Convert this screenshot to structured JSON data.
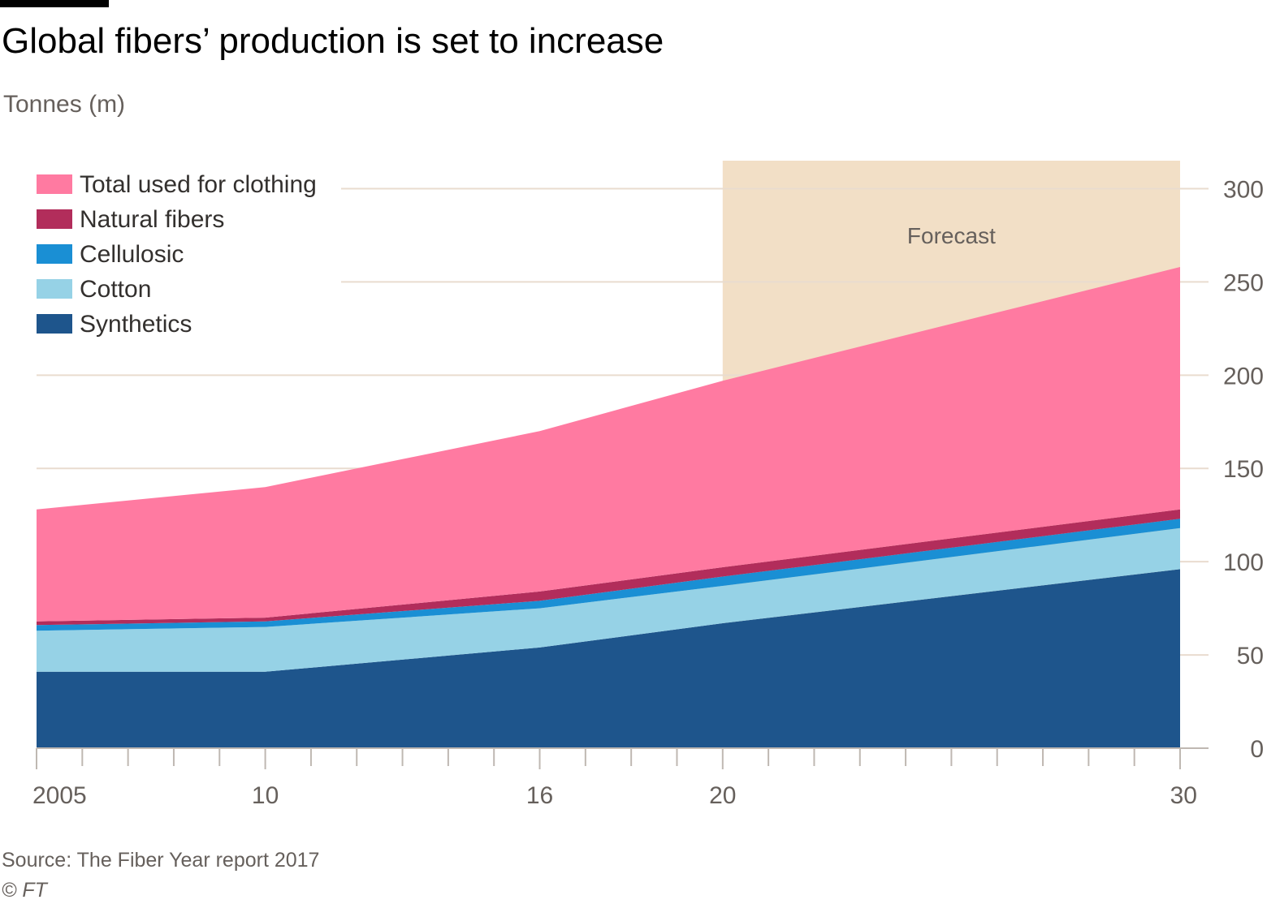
{
  "header": {
    "title": "Global fibers’ production is set to increase",
    "subtitle": "Tonnes (m)"
  },
  "footer": {
    "source": "Source: The Fiber Year report 2017",
    "credit": "© FT"
  },
  "colors": {
    "background": "#ffffff",
    "gridline": "#e9dccf",
    "forecast_band": "#f2dfc6",
    "axis": "#bfb8b2",
    "tick_text": "#66605c"
  },
  "chart_data": {
    "type": "area",
    "stacked": true,
    "x": [
      2005,
      2010,
      2016,
      2020,
      2030
    ],
    "xticks": [
      2005,
      2010,
      2016,
      2020,
      2030
    ],
    "xtick_labels": [
      "2005",
      "10",
      "16",
      "20",
      "30"
    ],
    "xlim": [
      2005,
      2030
    ],
    "ylim": [
      0,
      315
    ],
    "yticks": [
      0,
      50,
      100,
      150,
      200,
      250,
      300
    ],
    "yaxis_position": "right",
    "grid": true,
    "legend_position": "top-left",
    "annotation": {
      "label": "Forecast",
      "x_range": [
        2020,
        2030
      ]
    },
    "series": [
      {
        "name": "Synthetics",
        "color": "#1e558c",
        "values": [
          41,
          41,
          54,
          67,
          96
        ]
      },
      {
        "name": "Cotton",
        "color": "#96d2e6",
        "values": [
          22,
          24,
          21,
          20,
          22
        ]
      },
      {
        "name": "Cellulosic",
        "color": "#1a8fd4",
        "values": [
          3,
          3,
          4,
          5,
          5
        ]
      },
      {
        "name": "Natural fibers",
        "color": "#b22d5b",
        "values": [
          2,
          2,
          5,
          5,
          5
        ]
      },
      {
        "name": "Total used for clothing",
        "color": "#ff7aa1",
        "values": [
          60,
          70,
          86,
          100,
          130
        ]
      }
    ],
    "legend": [
      {
        "label": "Total used for clothing",
        "color": "#ff7aa1"
      },
      {
        "label": "Natural fibers",
        "color": "#b22d5b"
      },
      {
        "label": "Cellulosic",
        "color": "#1a8fd4"
      },
      {
        "label": "Cotton",
        "color": "#96d2e6"
      },
      {
        "label": "Synthetics",
        "color": "#1e558c"
      }
    ]
  }
}
